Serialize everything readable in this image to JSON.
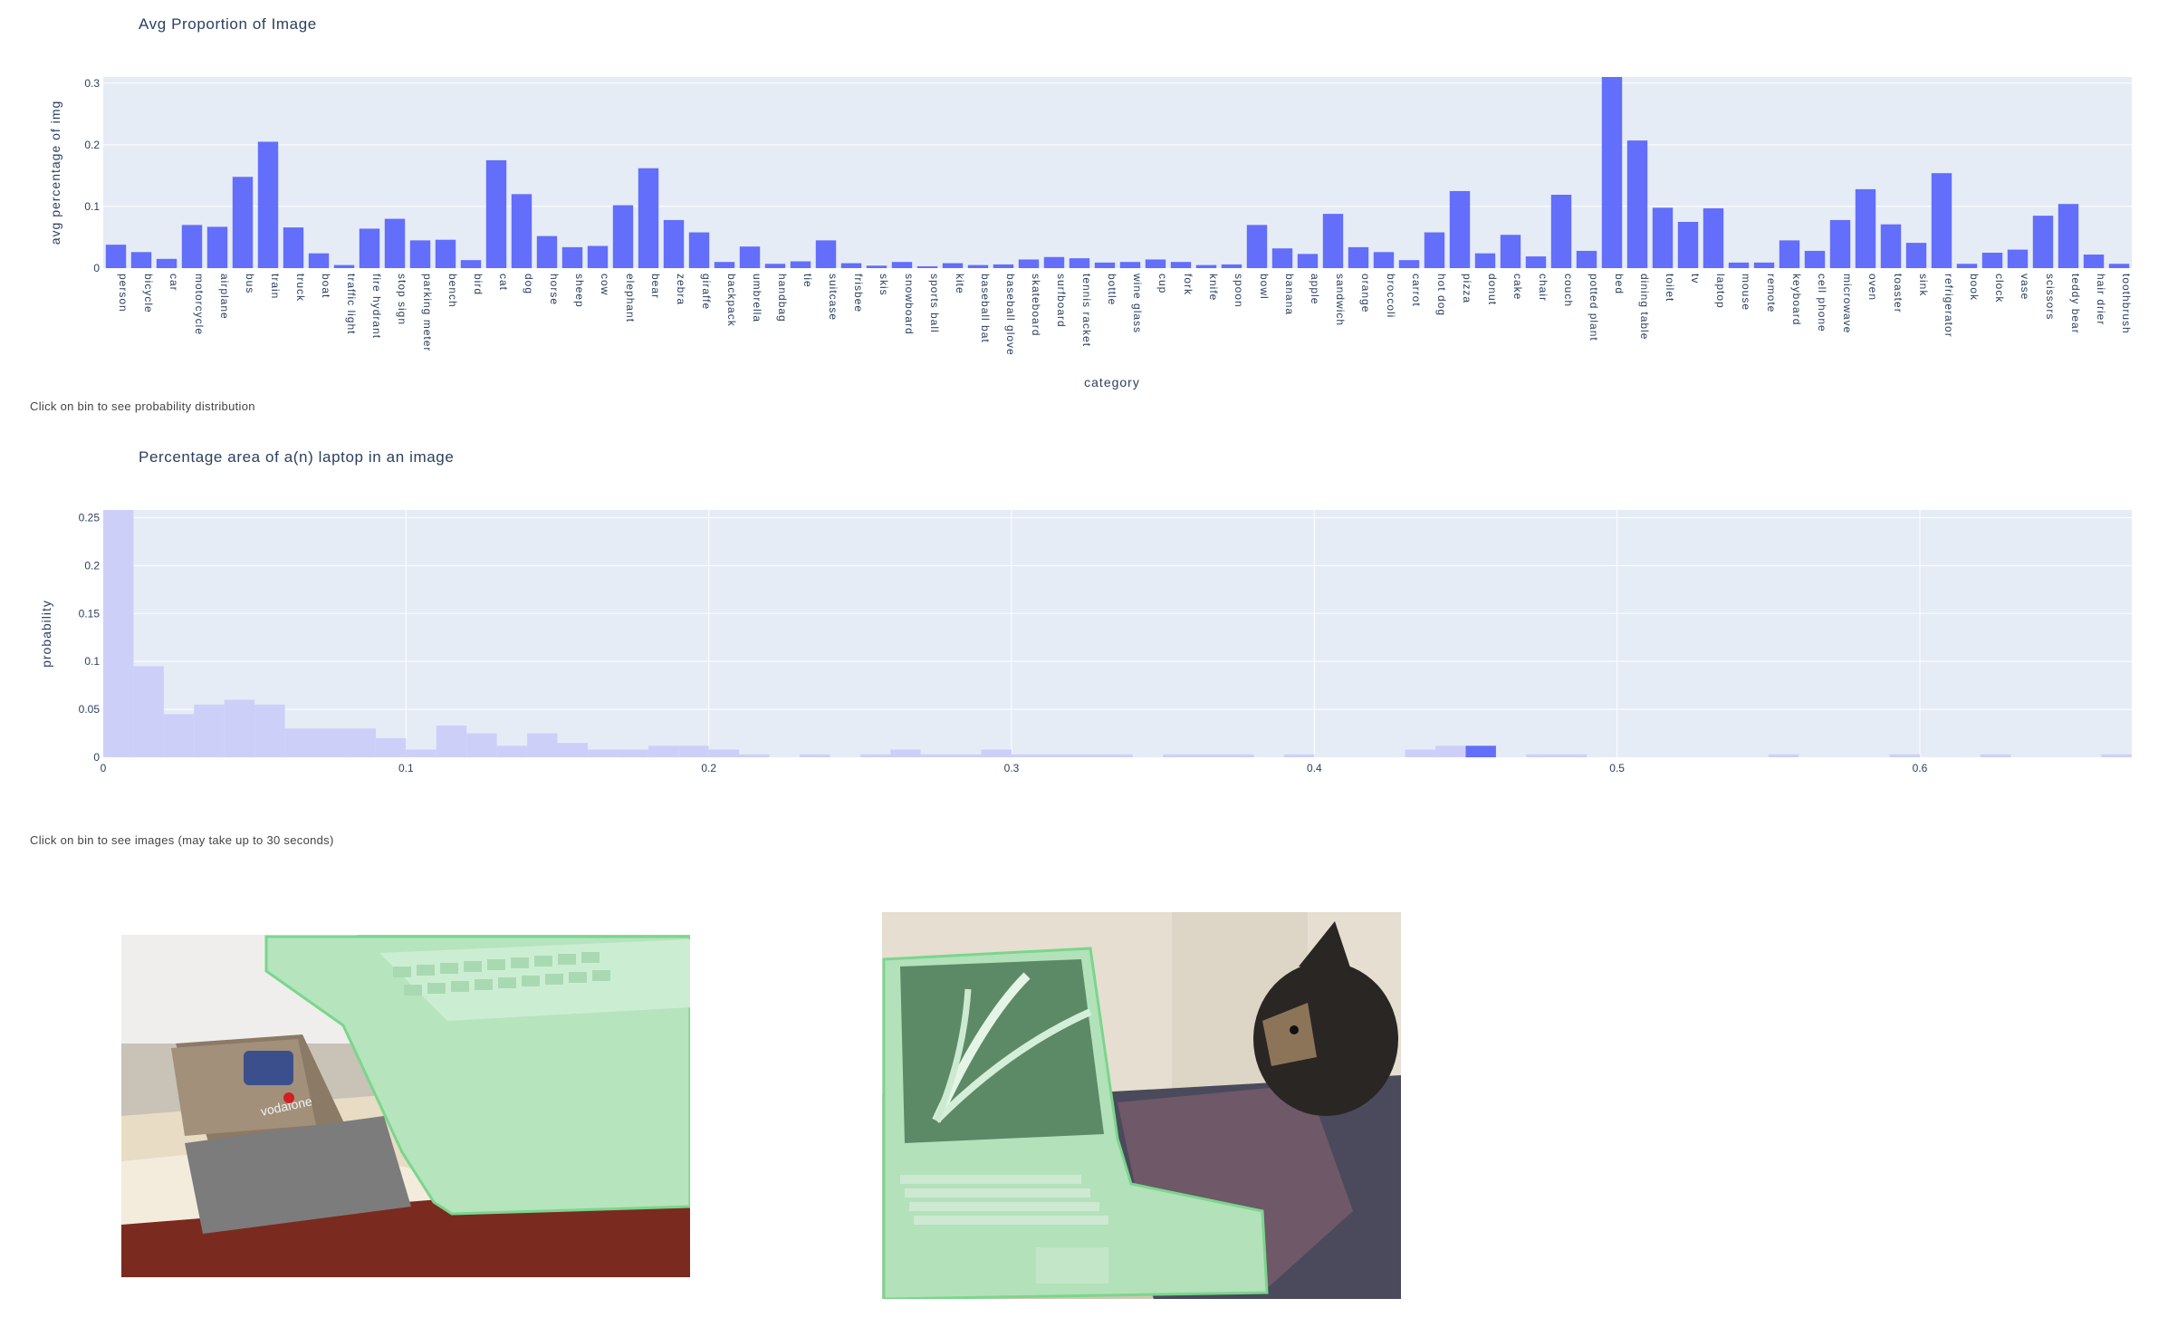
{
  "chart1": {
    "title": "Avg Proportion of Image",
    "hint": "Click on bin to see probability distribution"
  },
  "chart2": {
    "title": "Percentage area of a(n) laptop in an image",
    "hint": "Click on bin to see images (may take up to 30 seconds)"
  },
  "images": [
    {
      "alt": "phones next to laptop"
    },
    {
      "alt": "cat next to laptop"
    }
  ],
  "chart_data": [
    {
      "type": "bar",
      "title": "Avg Proportion of Image",
      "xlabel": "category",
      "ylabel": "avg percentage of img",
      "ylim": [
        0,
        0.31
      ],
      "yticks": [
        "0",
        "0.1",
        "0.2",
        "0.3"
      ],
      "bar_color": "#636efa",
      "plot_bg": "#e5ecf6",
      "categories": [
        "person",
        "bicycle",
        "car",
        "motorcycle",
        "airplane",
        "bus",
        "train",
        "truck",
        "boat",
        "traffic light",
        "fire hydrant",
        "stop sign",
        "parking meter",
        "bench",
        "bird",
        "cat",
        "dog",
        "horse",
        "sheep",
        "cow",
        "elephant",
        "bear",
        "zebra",
        "giraffe",
        "backpack",
        "umbrella",
        "handbag",
        "tie",
        "suitcase",
        "frisbee",
        "skis",
        "snowboard",
        "sports ball",
        "kite",
        "baseball bat",
        "baseball glove",
        "skateboard",
        "surfboard",
        "tennis racket",
        "bottle",
        "wine glass",
        "cup",
        "fork",
        "knife",
        "spoon",
        "bowl",
        "banana",
        "apple",
        "sandwich",
        "orange",
        "broccoli",
        "carrot",
        "hot dog",
        "pizza",
        "donut",
        "cake",
        "chair",
        "couch",
        "potted plant",
        "bed",
        "dining table",
        "toilet",
        "tv",
        "laptop",
        "mouse",
        "remote",
        "keyboard",
        "cell phone",
        "microwave",
        "oven",
        "toaster",
        "sink",
        "refrigerator",
        "book",
        "clock",
        "vase",
        "scissors",
        "teddy bear",
        "hair drier",
        "toothbrush"
      ],
      "values": [
        0.038,
        0.026,
        0.015,
        0.07,
        0.067,
        0.148,
        0.205,
        0.066,
        0.024,
        0.005,
        0.064,
        0.08,
        0.045,
        0.046,
        0.013,
        0.175,
        0.12,
        0.052,
        0.034,
        0.036,
        0.102,
        0.162,
        0.078,
        0.058,
        0.01,
        0.035,
        0.007,
        0.011,
        0.045,
        0.008,
        0.004,
        0.01,
        0.003,
        0.008,
        0.005,
        0.006,
        0.014,
        0.018,
        0.016,
        0.009,
        0.01,
        0.014,
        0.01,
        0.005,
        0.006,
        0.07,
        0.032,
        0.023,
        0.088,
        0.034,
        0.026,
        0.013,
        0.058,
        0.125,
        0.024,
        0.054,
        0.019,
        0.119,
        0.028,
        0.31,
        0.207,
        0.098,
        0.075,
        0.097,
        0.009,
        0.009,
        0.045,
        0.028,
        0.078,
        0.128,
        0.071,
        0.041,
        0.154,
        0.007,
        0.025,
        0.03,
        0.085,
        0.104,
        0.022,
        0.007
      ]
    },
    {
      "type": "bar",
      "title": "Percentage area of a(n) laptop in an image",
      "xlabel": "",
      "ylabel": "probability",
      "xlim": [
        0,
        0.67
      ],
      "ylim": [
        0,
        0.258
      ],
      "xticks": [
        0,
        0.1,
        0.2,
        0.3,
        0.4,
        0.5,
        0.6
      ],
      "xtick_labels": [
        "0",
        "0.1",
        "0.2",
        "0.3",
        "0.4",
        "0.5",
        "0.6"
      ],
      "yticks": [
        0,
        0.05,
        0.1,
        0.15,
        0.2,
        0.25
      ],
      "ytick_labels": [
        "0",
        "0.05",
        "0.1",
        "0.15",
        "0.2",
        "0.25"
      ],
      "bin_width": 0.01,
      "bin_color": "#ccd0f9",
      "selected_color": "#636efa",
      "selected_bin": 45,
      "values": [
        0.258,
        0.095,
        0.045,
        0.055,
        0.06,
        0.055,
        0.03,
        0.03,
        0.03,
        0.02,
        0.008,
        0.033,
        0.025,
        0.012,
        0.025,
        0.015,
        0.008,
        0.008,
        0.012,
        0.012,
        0.008,
        0.003,
        0,
        0.003,
        0,
        0.003,
        0.008,
        0.003,
        0.003,
        0.008,
        0.003,
        0.003,
        0.003,
        0.003,
        0,
        0.003,
        0.003,
        0.003,
        0,
        0.003,
        0,
        0,
        0,
        0.008,
        0.012,
        0.012,
        0,
        0.003,
        0.003,
        0,
        0,
        0,
        0,
        0,
        0,
        0.003,
        0,
        0,
        0,
        0.003,
        0,
        0,
        0.003,
        0,
        0,
        0,
        0.003
      ]
    }
  ]
}
